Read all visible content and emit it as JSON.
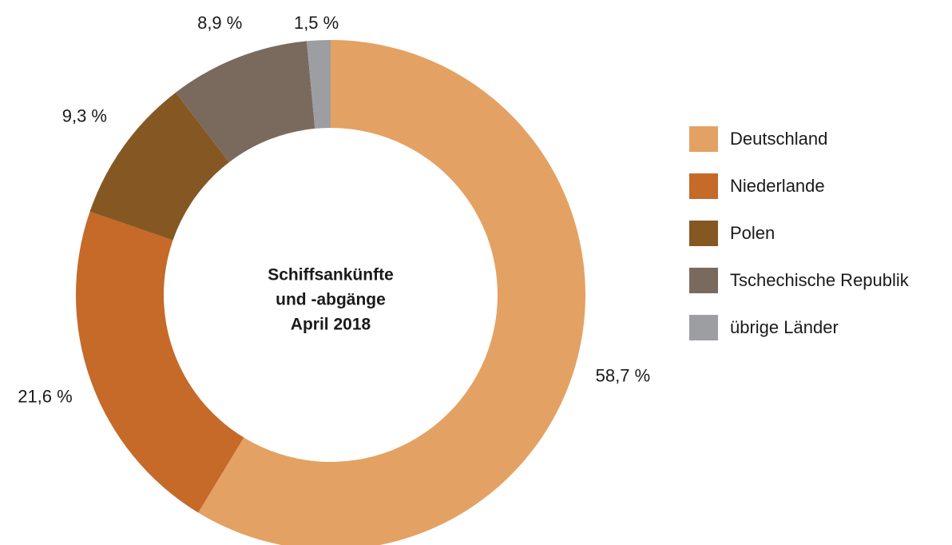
{
  "chart_data": {
    "type": "pie",
    "title": [
      "Schiffsankünfte",
      "und -abgänge",
      "April 2018"
    ],
    "categories": [
      "Deutschland",
      "Niederlande",
      "Polen",
      "Tschechische Republik",
      "übrige Länder"
    ],
    "values": [
      58.7,
      21.6,
      9.3,
      8.9,
      1.5
    ],
    "value_labels": [
      "58,7 %",
      "21,6 %",
      "9,3 %",
      "8,9 %",
      "1,5 %"
    ],
    "colors": [
      "#e3a263",
      "#c56a29",
      "#855823",
      "#7a6a5e",
      "#9c9ea2"
    ],
    "legend": "right"
  }
}
